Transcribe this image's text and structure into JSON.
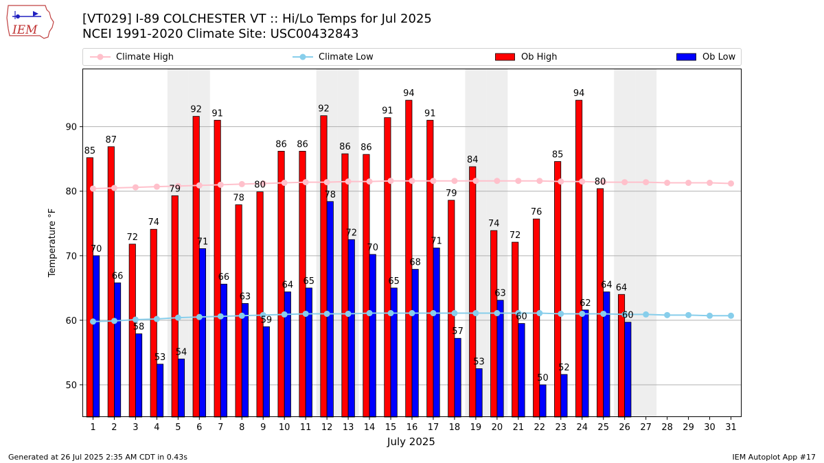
{
  "header": {
    "title_line1": "[VT029] I-89 COLCHESTER  VT :: Hi/Lo Temps for Jul 2025",
    "title_line2": "NCEI 1991-2020 Climate Site: USC00432843",
    "logo_text": "IEM"
  },
  "legend": {
    "climate_high": "Climate High",
    "climate_low": "Climate Low",
    "ob_high": "Ob High",
    "ob_low": "Ob Low"
  },
  "footer": {
    "left": "Generated at 26 Jul 2025 2:35 AM CDT in 0.43s",
    "right": "IEM Autoplot App #17"
  },
  "colors": {
    "ob_high": "#ff0000",
    "ob_low": "#0000ff",
    "climate_high": "#ffc0cb",
    "climate_low": "#87ceeb",
    "weekend_shade": "#eeeeee"
  },
  "chart_data": {
    "type": "bar",
    "xlabel": "July 2025",
    "ylabel": "Temperature °F",
    "xlim": [
      0.5,
      31.5
    ],
    "ylim": [
      45,
      99
    ],
    "yticks": [
      50,
      60,
      70,
      80,
      90
    ],
    "grid": "horizontal",
    "legend_position": "top",
    "days": [
      1,
      2,
      3,
      4,
      5,
      6,
      7,
      8,
      9,
      10,
      11,
      12,
      13,
      14,
      15,
      16,
      17,
      18,
      19,
      20,
      21,
      22,
      23,
      24,
      25,
      26,
      27,
      28,
      29,
      30,
      31
    ],
    "weekend_days": [
      5,
      6,
      12,
      13,
      19,
      20,
      26,
      27
    ],
    "series": [
      {
        "name": "Ob High",
        "kind": "bar",
        "values": [
          85.2,
          86.9,
          71.8,
          74.1,
          79.3,
          91.6,
          91.0,
          77.9,
          79.9,
          86.2,
          86.2,
          91.7,
          85.8,
          85.7,
          91.4,
          94.1,
          91.0,
          78.6,
          83.8,
          73.9,
          72.1,
          75.7,
          84.6,
          94.1,
          80.4,
          64.0
        ],
        "labels": [
          "85",
          "87",
          "72",
          "74",
          "79",
          "92",
          "91",
          "78",
          "80",
          "86",
          "86",
          "92",
          "86",
          "86",
          "91",
          "94",
          "91",
          "79",
          "84",
          "74",
          "72",
          "76",
          "85",
          "94",
          "80",
          "64"
        ]
      },
      {
        "name": "Ob Low",
        "kind": "bar",
        "values": [
          70.0,
          65.8,
          57.9,
          53.2,
          54.0,
          71.1,
          65.6,
          62.6,
          59.0,
          64.4,
          65.0,
          78.4,
          72.5,
          70.2,
          65.0,
          67.9,
          71.2,
          57.2,
          52.5,
          63.1,
          59.5,
          50.0,
          51.6,
          61.6,
          64.4,
          59.7
        ],
        "labels": [
          "70",
          "66",
          "58",
          "53",
          "54",
          "71",
          "66",
          "63",
          "59",
          "64",
          "65",
          "78",
          "72",
          "70",
          "65",
          "68",
          "71",
          "57",
          "53",
          "63",
          "60",
          "50",
          "52",
          "62",
          "64",
          "60"
        ]
      },
      {
        "name": "Climate High",
        "kind": "line",
        "values": [
          80.4,
          80.5,
          80.6,
          80.7,
          80.8,
          80.9,
          81.0,
          81.1,
          81.2,
          81.3,
          81.4,
          81.4,
          81.5,
          81.5,
          81.6,
          81.6,
          81.6,
          81.6,
          81.6,
          81.6,
          81.6,
          81.6,
          81.5,
          81.5,
          81.4,
          81.4,
          81.4,
          81.3,
          81.3,
          81.3,
          81.2
        ]
      },
      {
        "name": "Climate Low",
        "kind": "line",
        "values": [
          59.8,
          59.9,
          60.1,
          60.2,
          60.4,
          60.5,
          60.6,
          60.7,
          60.8,
          60.9,
          61.0,
          61.0,
          61.0,
          61.1,
          61.1,
          61.1,
          61.1,
          61.1,
          61.1,
          61.1,
          61.1,
          61.1,
          61.0,
          61.0,
          61.0,
          60.9,
          60.9,
          60.8,
          60.8,
          60.7,
          60.7
        ]
      }
    ]
  }
}
